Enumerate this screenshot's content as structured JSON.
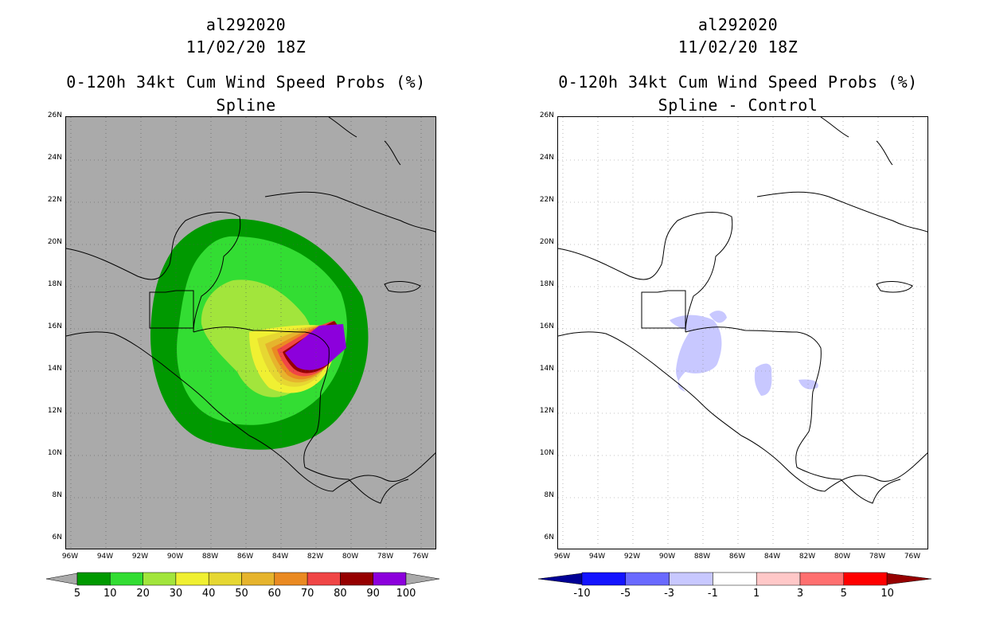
{
  "left": {
    "storm_id": "al292020",
    "datetime": "11/02/20 18Z",
    "product": "0-120h 34kt Cum Wind Speed Probs (%)",
    "subtitle": "Spline",
    "colorbar": {
      "colors": [
        "#009900",
        "#33dd33",
        "#a2e53c",
        "#f0f032",
        "#e6d732",
        "#e6b42d",
        "#ea8a22",
        "#f04646",
        "#960000",
        "#8c00dc"
      ],
      "labels": [
        "5",
        "10",
        "20",
        "30",
        "40",
        "50",
        "60",
        "70",
        "80",
        "90",
        "100"
      ]
    }
  },
  "right": {
    "storm_id": "al292020",
    "datetime": "11/02/20 18Z",
    "product": "0-120h 34kt Cum Wind Speed Probs (%)",
    "subtitle": "Spline - Control",
    "colorbar": {
      "colors": [
        "#000096",
        "#1414ff",
        "#6a6aff",
        "#c8c8ff",
        "#ffffff",
        "#ffc8c8",
        "#ff7070",
        "#ff0000",
        "#960000"
      ],
      "labels": [
        "-10",
        "-5",
        "-3",
        "-1",
        "1",
        "3",
        "5",
        "10"
      ]
    }
  },
  "axes": {
    "lat_labels": [
      "26N",
      "24N",
      "22N",
      "20N",
      "18N",
      "16N",
      "14N",
      "12N",
      "10N",
      "8N",
      "6N"
    ],
    "lon_labels": [
      "96W",
      "94W",
      "92W",
      "90W",
      "88W",
      "86W",
      "84W",
      "82W",
      "80W",
      "78W",
      "76W"
    ]
  }
}
